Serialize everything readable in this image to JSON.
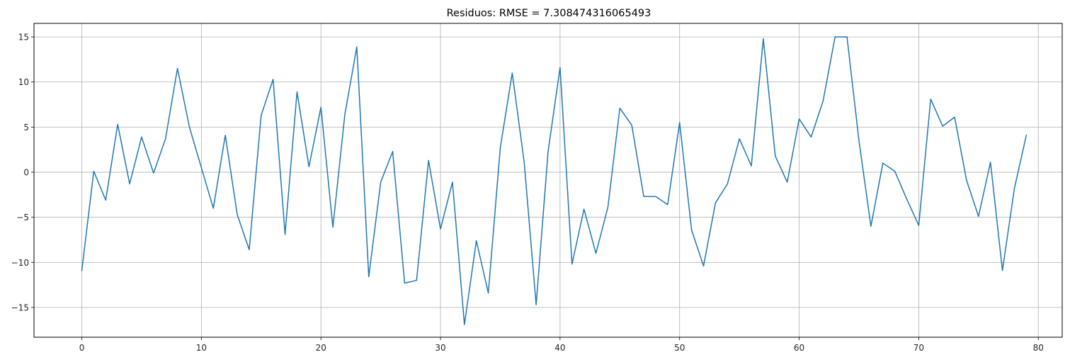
{
  "chart_data": {
    "type": "line",
    "title": "Residuos: RMSE = 7.308474316065493",
    "xlabel": "",
    "ylabel": "",
    "xlim": [
      -4,
      82
    ],
    "ylim": [
      -18.3,
      16.5
    ],
    "xticks": [
      0,
      10,
      20,
      30,
      40,
      50,
      60,
      70,
      80
    ],
    "xtick_labels": [
      "0",
      "10",
      "20",
      "30",
      "40",
      "50",
      "60",
      "70",
      "80"
    ],
    "yticks": [
      -15,
      -10,
      -5,
      0,
      5,
      10,
      15
    ],
    "ytick_labels": [
      "−15",
      "−10",
      "−5",
      "0",
      "5",
      "10",
      "15"
    ],
    "grid": true,
    "colors": {
      "line": "#1f77b4",
      "grid": "#b0b0b0",
      "axis": "#000000"
    },
    "series": [
      {
        "x": [
          0,
          1,
          2,
          3,
          4,
          5,
          6,
          7,
          8,
          9,
          10,
          11,
          12,
          13,
          14,
          15,
          16,
          17,
          18,
          19,
          20,
          21,
          22,
          23,
          24,
          25,
          26,
          27,
          28,
          29,
          30,
          31,
          32,
          33,
          34,
          35,
          36,
          37,
          38,
          39,
          40,
          41,
          42,
          43,
          44,
          45,
          46,
          47,
          48,
          49,
          50,
          51,
          52,
          53,
          54,
          55,
          56,
          57,
          58,
          59,
          60,
          61,
          62,
          63,
          64,
          65,
          66,
          67,
          68,
          69,
          70,
          71,
          72,
          73,
          74,
          75,
          76,
          77,
          78,
          79
        ],
        "y": [
          -10.9,
          0.1,
          -3.1,
          5.3,
          -1.3,
          3.9,
          -0.1,
          3.7,
          11.5,
          5.0,
          0.5,
          -4.0,
          4.1,
          -4.7,
          -8.6,
          6.3,
          10.3,
          -6.9,
          8.9,
          0.6,
          7.2,
          -6.1,
          6.4,
          13.9,
          -11.6,
          -1.1,
          2.3,
          -12.3,
          -12.0,
          1.3,
          -6.3,
          -1.1,
          -16.9,
          -7.6,
          -13.4,
          2.7,
          11.0,
          1.1,
          -14.7,
          2.3,
          11.6,
          -10.2,
          -4.1,
          -9.0,
          -3.9,
          7.1,
          5.2,
          -2.7,
          -2.7,
          -3.6,
          5.5,
          -6.4,
          -10.4,
          -3.4,
          -1.3,
          3.7,
          0.7,
          14.8,
          1.8,
          -1.1,
          5.9,
          3.9,
          7.9,
          15.0,
          15.0,
          3.5,
          -6.0,
          1.0,
          0.1,
          -3.0,
          -5.9,
          8.1,
          5.1,
          6.1,
          -0.9,
          -4.9,
          1.1,
          -10.9,
          -1.8,
          4.1
        ]
      }
    ]
  }
}
